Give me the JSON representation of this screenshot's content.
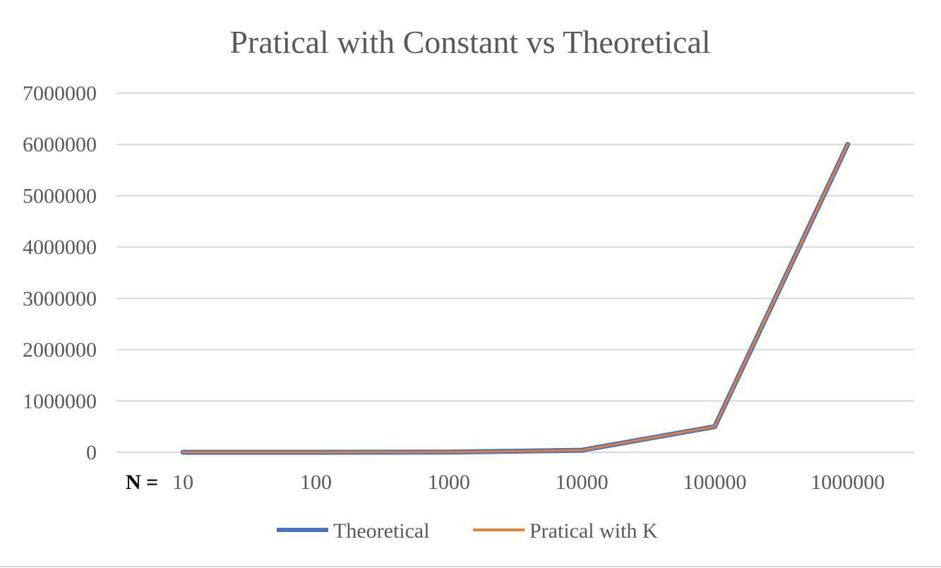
{
  "chart_data": {
    "type": "line",
    "title": "Pratical with Constant vs Theoretical",
    "x_prefix": "N =",
    "categories": [
      "10",
      "100",
      "1000",
      "10000",
      "100000",
      "1000000"
    ],
    "yticks": [
      "0",
      "1000000",
      "2000000",
      "3000000",
      "4000000",
      "5000000",
      "6000000",
      "7000000"
    ],
    "ylim": [
      0,
      7000000
    ],
    "grid": true,
    "legend_position": "bottom",
    "series": [
      {
        "name": "Theoretical",
        "color": "#4472C4",
        "values": [
          10,
          200,
          3000,
          40000,
          500000,
          6000000
        ]
      },
      {
        "name": "Pratical with K",
        "color": "#ED7D31",
        "values": [
          10,
          200,
          3000,
          40000,
          500000,
          6000000
        ]
      }
    ]
  }
}
